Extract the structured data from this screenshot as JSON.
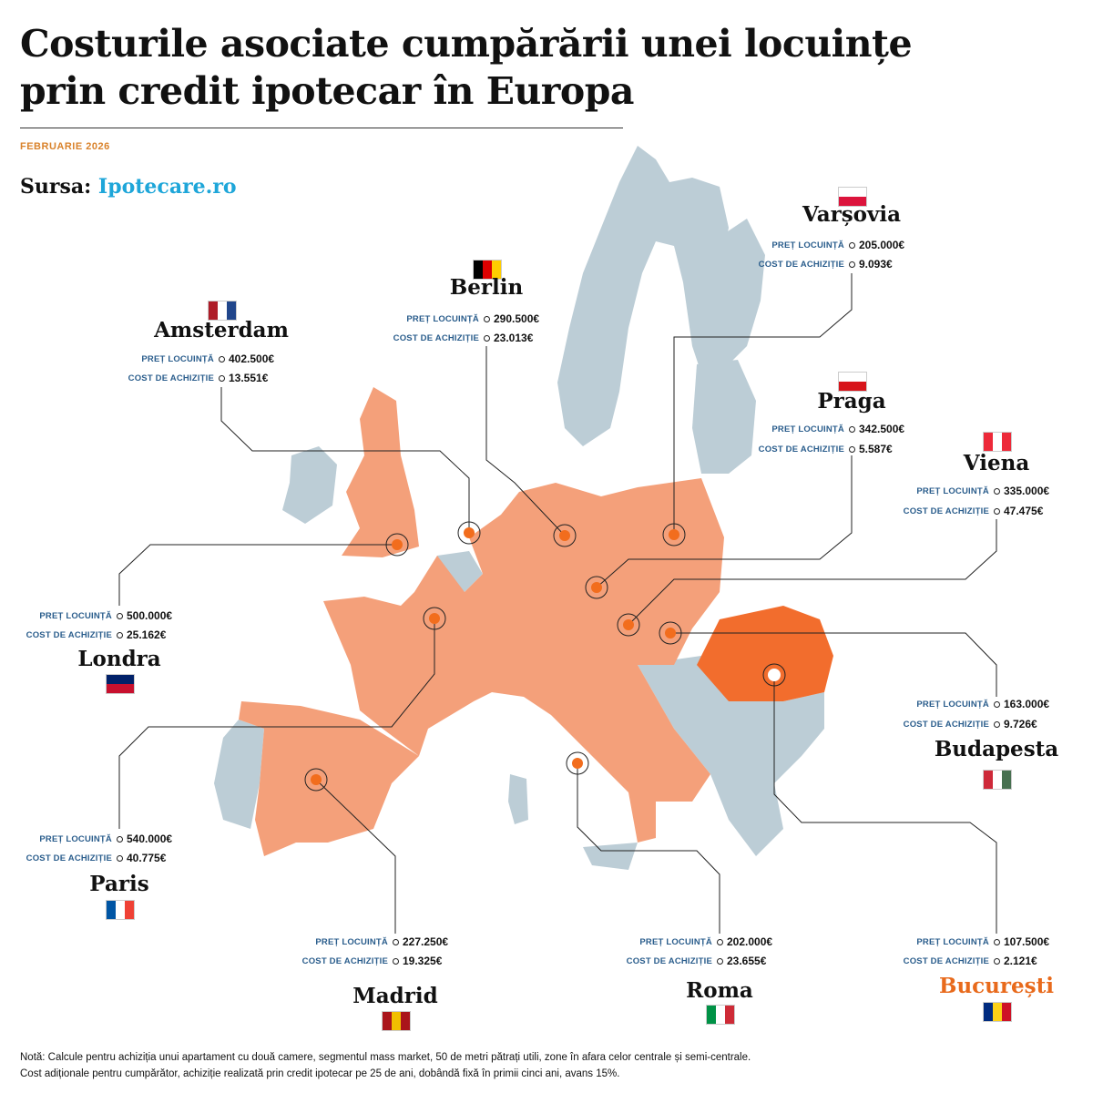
{
  "title_line1": "Costurile asociate cumpărării unei locuințe",
  "title_line2": "prin credit ipotecar în Europa",
  "date": "FEBRUARIE 2026",
  "source_label": "Sursa:",
  "source_name": "Ipotecare.ro",
  "labels": {
    "price": "PREȚ LOCUINȚĂ",
    "cost": "COST DE ACHIZIȚIE"
  },
  "colors": {
    "eu_highlight": "#f4a07a",
    "romania": "#f26d2d",
    "other_land": "#bccdd6",
    "marker": "#f26d1d",
    "accent_text": "#e86a1c",
    "label_blue": "#2a5d8c"
  },
  "cities": [
    {
      "name": "Varșovia",
      "price": "205.000€",
      "cost": "9.093€",
      "flag": [
        "#ffffff",
        "#dc143c"
      ]
    },
    {
      "name": "Berlin",
      "price": "290.500€",
      "cost": "23.013€",
      "flag": [
        "#000000",
        "#dd0000",
        "#ffce00"
      ]
    },
    {
      "name": "Amsterdam",
      "price": "402.500€",
      "cost": "13.551€",
      "flag": [
        "#ae1c28",
        "#ffffff",
        "#21468b"
      ]
    },
    {
      "name": "Praga",
      "price": "342.500€",
      "cost": "5.587€",
      "flag": [
        "#ffffff",
        "#d7141a"
      ]
    },
    {
      "name": "Viena",
      "price": "335.000€",
      "cost": "47.475€",
      "flag": [
        "#ed2939",
        "#ffffff",
        "#ed2939"
      ]
    },
    {
      "name": "Londra",
      "price": "500.000€",
      "cost": "25.162€",
      "flag": [
        "#012169",
        "#c8102e"
      ]
    },
    {
      "name": "Paris",
      "price": "540.000€",
      "cost": "40.775€",
      "flag": [
        "#0055a4",
        "#ffffff",
        "#ef4135"
      ]
    },
    {
      "name": "Madrid",
      "price": "227.250€",
      "cost": "19.325€",
      "flag": [
        "#aa151b",
        "#f1bf00",
        "#aa151b"
      ]
    },
    {
      "name": "Roma",
      "price": "202.000€",
      "cost": "23.655€",
      "flag": [
        "#009246",
        "#ffffff",
        "#ce2b37"
      ]
    },
    {
      "name": "Budapesta",
      "price": "163.000€",
      "cost": "9.726€",
      "flag": [
        "#ce2939",
        "#ffffff",
        "#477050"
      ]
    },
    {
      "name": "București",
      "price": "107.500€",
      "cost": "2.121€",
      "flag": [
        "#002b7f",
        "#fcd116",
        "#ce1126"
      ]
    }
  ],
  "note_line1": "Notă: Calcule pentru achiziția unui apartament cu două camere, segmentul mass market, 50 de metri pătrați utili, zone în afara celor centrale și semi-centrale.",
  "note_line2": "Cost adiționale pentru cumpărător, achiziție realizată prin credit ipotecar pe 25 de ani, dobândă fixă în primii cinci ani, avans 15%."
}
